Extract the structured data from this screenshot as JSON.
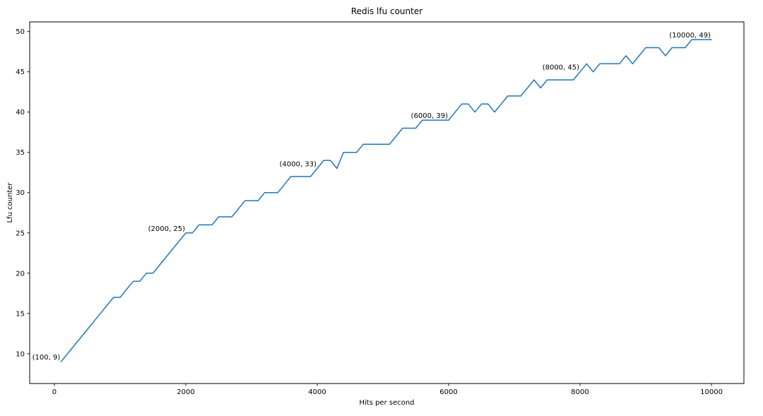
{
  "chart_data": {
    "type": "line",
    "title": "Redis lfu counter",
    "xlabel": "Hits per second",
    "ylabel": "Lfu counter",
    "x": [
      100,
      200,
      300,
      400,
      500,
      600,
      700,
      800,
      900,
      1000,
      1100,
      1200,
      1300,
      1400,
      1500,
      1600,
      1700,
      1800,
      1900,
      2000,
      2100,
      2200,
      2300,
      2400,
      2500,
      2600,
      2700,
      2800,
      2900,
      3000,
      3100,
      3200,
      3300,
      3400,
      3500,
      3600,
      3700,
      3800,
      3900,
      4000,
      4100,
      4200,
      4300,
      4400,
      4500,
      4600,
      4700,
      4800,
      4900,
      5000,
      5100,
      5200,
      5300,
      5400,
      5500,
      5600,
      5700,
      5800,
      5900,
      6000,
      6100,
      6200,
      6300,
      6400,
      6500,
      6600,
      6700,
      6800,
      6900,
      7000,
      7100,
      7200,
      7300,
      7400,
      7500,
      7600,
      7700,
      7800,
      7900,
      8000,
      8100,
      8200,
      8300,
      8400,
      8500,
      8600,
      8700,
      8800,
      8900,
      9000,
      9100,
      9200,
      9300,
      9400,
      9500,
      9600,
      9700,
      9800,
      9900,
      10000
    ],
    "y": [
      9,
      10,
      11,
      12,
      13,
      14,
      15,
      16,
      17,
      17,
      18,
      19,
      19,
      20,
      20,
      21,
      22,
      23,
      24,
      25,
      25,
      26,
      26,
      26,
      27,
      27,
      27,
      28,
      29,
      29,
      29,
      30,
      30,
      30,
      31,
      32,
      32,
      32,
      32,
      33,
      34,
      34,
      33,
      35,
      35,
      35,
      36,
      36,
      36,
      36,
      36,
      37,
      38,
      38,
      38,
      39,
      39,
      39,
      39,
      39,
      40,
      41,
      41,
      40,
      41,
      41,
      40,
      41,
      42,
      42,
      42,
      43,
      44,
      43,
      44,
      44,
      44,
      44,
      44,
      45,
      46,
      45,
      46,
      46,
      46,
      46,
      47,
      46,
      47,
      48,
      48,
      48,
      47,
      48,
      48,
      48,
      49,
      49,
      49,
      49
    ],
    "xlim": [
      -376,
      10494
    ],
    "ylim": [
      6.3,
      51.2
    ],
    "x_ticks": [
      "0",
      "2000",
      "4000",
      "6000",
      "8000",
      "10000"
    ],
    "x_tick_values": [
      0,
      2000,
      4000,
      6000,
      8000,
      10000
    ],
    "y_ticks": [
      "10",
      "15",
      "20",
      "25",
      "30",
      "35",
      "40",
      "45",
      "50"
    ],
    "y_tick_values": [
      10,
      15,
      20,
      25,
      30,
      35,
      40,
      45,
      50
    ],
    "line_color": "#1f77b4",
    "spine_color": "#000000",
    "text_color": "#000000",
    "grid": false,
    "legend": null,
    "annotations": [
      {
        "x": 100,
        "y": 9,
        "label": "(100, 9)"
      },
      {
        "x": 2000,
        "y": 25,
        "label": "(2000, 25)"
      },
      {
        "x": 4000,
        "y": 33,
        "label": "(4000, 33)"
      },
      {
        "x": 6000,
        "y": 39,
        "label": "(6000, 39)"
      },
      {
        "x": 8000,
        "y": 45,
        "label": "(8000, 45)"
      },
      {
        "x": 10000,
        "y": 49,
        "label": "(10000, 49)"
      }
    ]
  }
}
